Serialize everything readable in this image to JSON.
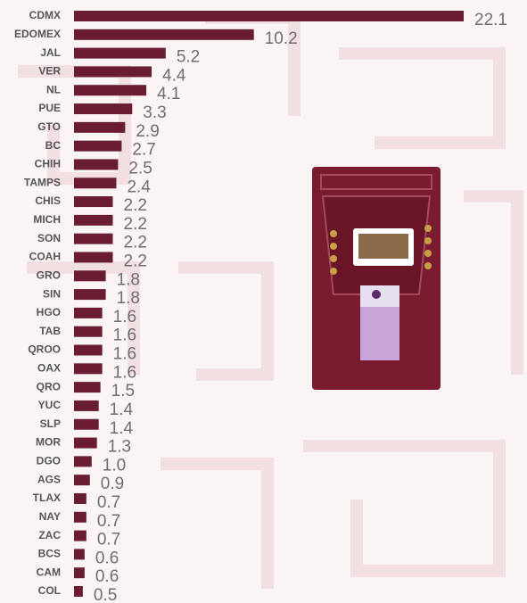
{
  "chart_data": {
    "type": "bar",
    "orientation": "horizontal",
    "color": "#6a1c30",
    "categories": [
      "CDMX",
      "EDOMEX",
      "JAL",
      "VER",
      "NL",
      "PUE",
      "GTO",
      "BC",
      "CHIH",
      "TAMPS",
      "CHIS",
      "MICH",
      "SON",
      "COAH",
      "GRO",
      "SIN",
      "HGO",
      "TAB",
      "QROO",
      "OAX",
      "QRO",
      "YUC",
      "SLP",
      "MOR",
      "DGO",
      "AGS",
      "TLAX",
      "NAY",
      "ZAC",
      "BCS",
      "CAM",
      "COL"
    ],
    "values": [
      22.1,
      10.2,
      5.2,
      4.4,
      4.1,
      3.3,
      2.9,
      2.7,
      2.5,
      2.4,
      2.2,
      2.2,
      2.2,
      2.2,
      1.8,
      1.8,
      1.6,
      1.6,
      1.6,
      1.6,
      1.5,
      1.4,
      1.4,
      1.3,
      1.0,
      0.9,
      0.7,
      0.7,
      0.7,
      0.6,
      0.6,
      0.5
    ],
    "value_labels": [
      "22.1",
      "10.2",
      "5.2",
      "4.4",
      "4.1",
      "3.3",
      "2.9",
      "2.7",
      "2.5",
      "2.4",
      "2.2",
      "2.2",
      "2.2",
      "2.2",
      "1.8",
      "1.8",
      "1.6",
      "1.6",
      "1.6",
      "1.6",
      "1.5",
      "1.4",
      "1.4",
      "1.3",
      "1.0",
      "0.9",
      "0.7",
      "0.7",
      "0.7",
      "0.6",
      "0.6",
      "0.5"
    ]
  }
}
